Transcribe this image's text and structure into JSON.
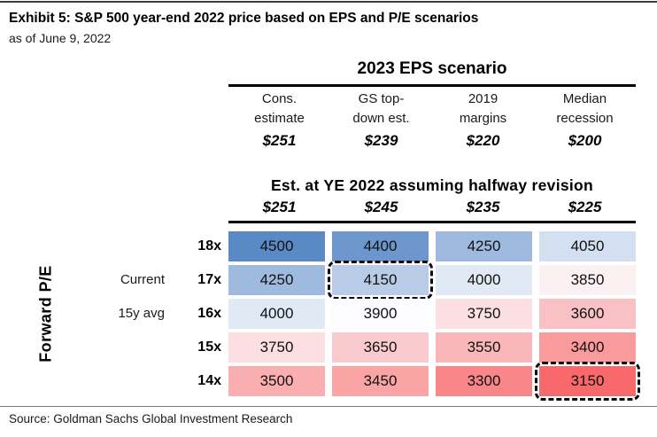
{
  "page": {
    "title": "Exhibit 5: S&P 500 year-end 2022 price based on EPS and P/E scenarios",
    "subtitle": "as of June 9, 2022",
    "source": "Source: Goldman Sachs Global Investment Research"
  },
  "eps_header": {
    "title": "2023 EPS scenario",
    "columns": [
      {
        "line1": "Cons.",
        "line2": "estimate",
        "eps": "$251"
      },
      {
        "line1": "GS top-",
        "line2": "down est.",
        "eps": "$239"
      },
      {
        "line1": "2019",
        "line2": "margins",
        "eps": "$220"
      },
      {
        "line1": "Median",
        "line2": "recession",
        "eps": "$200"
      }
    ]
  },
  "halfway_header": {
    "title": "Est. at YE 2022 assuming halfway revision",
    "values": [
      "$251",
      "$245",
      "$235",
      "$225"
    ]
  },
  "axis": {
    "y_label": "Forward P/E"
  },
  "matrix": {
    "rows": [
      {
        "pe": "18x",
        "annotation": "",
        "cells": [
          {
            "value": "4500",
            "bg": "#5A8AC6"
          },
          {
            "value": "4400",
            "bg": "#6C96CC"
          },
          {
            "value": "4250",
            "bg": "#9EBADE"
          },
          {
            "value": "4050",
            "bg": "#D3E0F1"
          }
        ]
      },
      {
        "pe": "17x",
        "annotation": "Current",
        "cells": [
          {
            "value": "4250",
            "bg": "#9EBADE"
          },
          {
            "value": "4150",
            "bg": "#B8CCE7",
            "highlight": true
          },
          {
            "value": "4000",
            "bg": "#E1E9F5"
          },
          {
            "value": "3850",
            "bg": "#FBF0F2"
          }
        ]
      },
      {
        "pe": "16x",
        "annotation": "15y avg",
        "cells": [
          {
            "value": "4000",
            "bg": "#E1E9F5"
          },
          {
            "value": "3900",
            "bg": "#FCFCFF"
          },
          {
            "value": "3750",
            "bg": "#FBDFE1"
          },
          {
            "value": "3600",
            "bg": "#FAC1C4"
          }
        ]
      },
      {
        "pe": "15x",
        "annotation": "",
        "cells": [
          {
            "value": "3750",
            "bg": "#FBDFE1"
          },
          {
            "value": "3650",
            "bg": "#FACBCE"
          },
          {
            "value": "3550",
            "bg": "#FAB7BA"
          },
          {
            "value": "3400",
            "bg": "#F99A9C"
          }
        ]
      },
      {
        "pe": "14x",
        "annotation": "",
        "cells": [
          {
            "value": "3500",
            "bg": "#FAAEB0"
          },
          {
            "value": "3450",
            "bg": "#FAA4A6"
          },
          {
            "value": "3300",
            "bg": "#F98689"
          },
          {
            "value": "3150",
            "bg": "#F8696B",
            "highlight": true
          }
        ]
      }
    ]
  },
  "chart_data": {
    "type": "heatmap",
    "title": "Exhibit 5: S&P 500 year-end 2022 price based on EPS and P/E scenarios",
    "subtitle": "as of June 9, 2022",
    "x_group_label": "2023 EPS scenario",
    "x_categories": [
      "Cons. estimate",
      "GS top-down est.",
      "2019 margins",
      "Median recession"
    ],
    "x_category_eps": [
      251,
      239,
      220,
      200
    ],
    "x_secondary_label": "Est. at YE 2022 assuming halfway revision",
    "x_secondary_eps": [
      251,
      245,
      235,
      225
    ],
    "ylabel": "Forward P/E",
    "y_categories": [
      "18x",
      "17x",
      "16x",
      "15x",
      "14x"
    ],
    "y_annotations": [
      {
        "row": "17x",
        "label": "Current"
      },
      {
        "row": "16x",
        "label": "15y avg"
      }
    ],
    "values": [
      [
        4500,
        4400,
        4250,
        4050
      ],
      [
        4250,
        4150,
        4000,
        3850
      ],
      [
        4000,
        3900,
        3750,
        3600
      ],
      [
        3750,
        3650,
        3550,
        3400
      ],
      [
        3500,
        3450,
        3300,
        3150
      ]
    ],
    "highlighted_cells": [
      {
        "row": "17x",
        "col": "GS top-down est.",
        "value": 4150
      },
      {
        "row": "14x",
        "col": "Median recession",
        "value": 3150
      }
    ],
    "colorscale": {
      "low": "#F8696B",
      "mid": "#FCFCFF",
      "high": "#5A8AC6",
      "low_value": 3150,
      "mid_value": 3875,
      "high_value": 4500
    },
    "source": "Source: Goldman Sachs Global Investment Research"
  }
}
